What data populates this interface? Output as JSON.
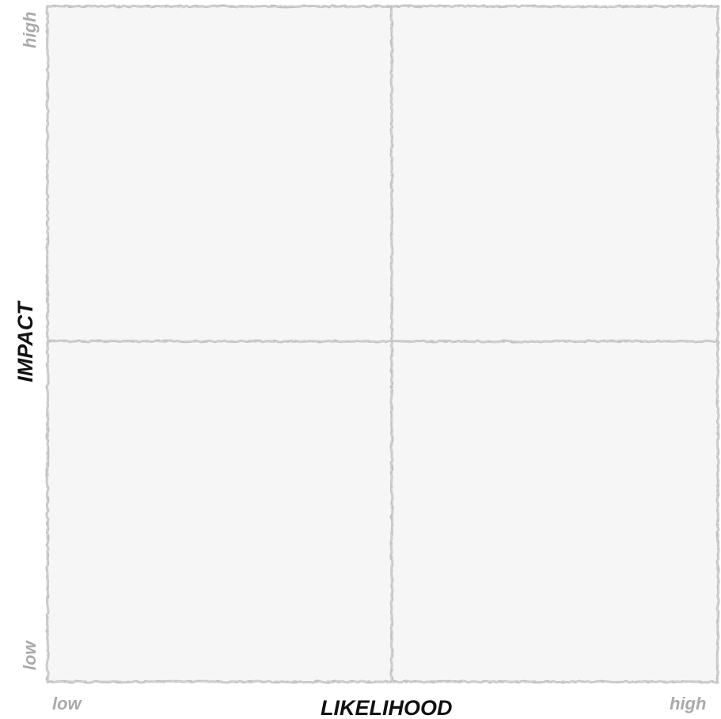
{
  "matrix": {
    "x_axis": {
      "title": "LIKELIHOOD",
      "low_label": "low",
      "high_label": "high"
    },
    "y_axis": {
      "title": "IMPACT",
      "low_label": "low",
      "high_label": "high"
    },
    "quadrant_fill": "#f6f6f6",
    "line_color": "#c2c2c2"
  }
}
